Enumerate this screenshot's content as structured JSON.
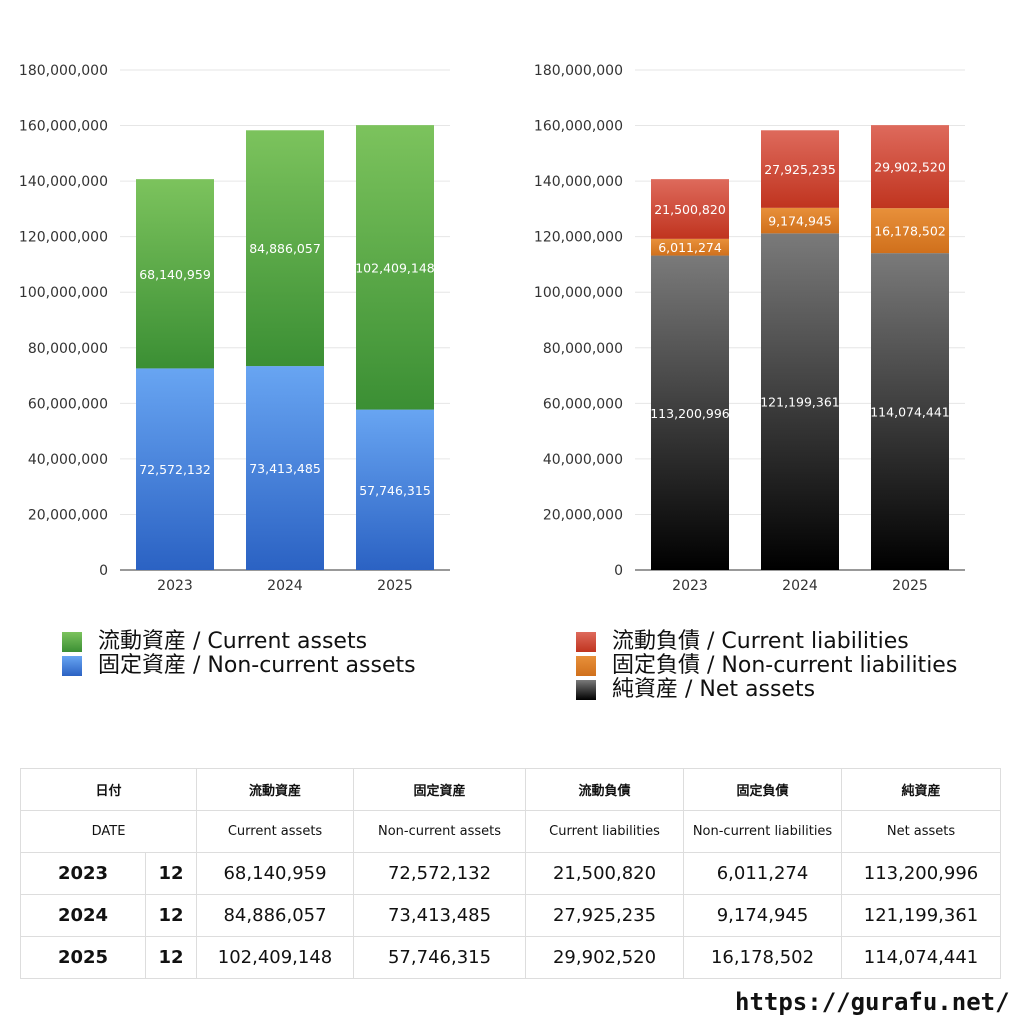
{
  "chart_data": [
    {
      "type": "bar",
      "stacked": true,
      "categories": [
        "2023",
        "2024",
        "2025"
      ],
      "ylim": [
        0,
        180000000
      ],
      "yticks": [
        "0",
        "20,000,000",
        "40,000,000",
        "60,000,000",
        "80,000,000",
        "100,000,000",
        "120,000,000",
        "140,000,000",
        "160,000,000",
        "180,000,000"
      ],
      "grid": true,
      "legend_position": "bottom",
      "series": [
        {
          "name": "固定資産 / Non-current assets",
          "values": [
            72572132,
            73413485,
            57746315
          ],
          "labels": [
            "72,572,132",
            "73,413,485",
            "57,746,315"
          ],
          "color_top": "#68a5f2",
          "color_bottom": "#2b62c3"
        },
        {
          "name": "流動資産 / Current assets",
          "values": [
            68140959,
            84886057,
            102409148
          ],
          "labels": [
            "68,140,959",
            "84,886,057",
            "102,409,148"
          ],
          "color_top": "#7cc35d",
          "color_bottom": "#3b8f34"
        }
      ]
    },
    {
      "type": "bar",
      "stacked": true,
      "categories": [
        "2023",
        "2024",
        "2025"
      ],
      "ylim": [
        0,
        180000000
      ],
      "yticks": [
        "0",
        "20,000,000",
        "40,000,000",
        "60,000,000",
        "80,000,000",
        "100,000,000",
        "120,000,000",
        "140,000,000",
        "160,000,000",
        "180,000,000"
      ],
      "grid": true,
      "legend_position": "bottom",
      "series": [
        {
          "name": "純資産 / Net assets",
          "values": [
            113200996,
            121199361,
            114074441
          ],
          "labels": [
            "113,200,996",
            "121,199,361",
            "114,074,441"
          ],
          "color_top": "#7a7a7a",
          "color_bottom": "#000000"
        },
        {
          "name": "固定負債 / Non-current liabilities",
          "values": [
            6011274,
            9174945,
            16178502
          ],
          "labels": [
            "6,011,274",
            "9,174,945",
            "16,178,502"
          ],
          "color_top": "#e8903a",
          "color_bottom": "#d0701c"
        },
        {
          "name": "流動負債 / Current liabilities",
          "values": [
            21500820,
            27925235,
            29902520
          ],
          "labels": [
            "21,500,820",
            "27,925,235",
            "29,902,520"
          ],
          "color_top": "#de6a5c",
          "color_bottom": "#c0341f"
        }
      ]
    }
  ],
  "legend_assets": [
    {
      "label": "流動資産 / Current assets",
      "color": "#5fae46"
    },
    {
      "label": "固定資産 / Non-current assets",
      "color": "#3c7ee0"
    }
  ],
  "legend_liabilities": [
    {
      "label": "流動負債 / Current liabilities",
      "color": "#d4483a"
    },
    {
      "label": "固定負債 / Non-current liabilities",
      "color": "#e0822c"
    },
    {
      "label": "純資産 / Net assets",
      "color": "#2a2a2a"
    }
  ],
  "table": {
    "header_jp": [
      "日付",
      "流動資産",
      "固定資産",
      "流動負債",
      "固定負債",
      "純資産"
    ],
    "header_en": [
      "DATE",
      "Current assets",
      "Non-current assets",
      "Current liabilities",
      "Non-current liabilities",
      "Net assets"
    ],
    "rows": [
      {
        "year": "2023",
        "month": "12",
        "cells": [
          "68,140,959",
          "72,572,132",
          "21,500,820",
          "6,011,274",
          "113,200,996"
        ]
      },
      {
        "year": "2024",
        "month": "12",
        "cells": [
          "84,886,057",
          "73,413,485",
          "27,925,235",
          "9,174,945",
          "121,199,361"
        ]
      },
      {
        "year": "2025",
        "month": "12",
        "cells": [
          "102,409,148",
          "57,746,315",
          "29,902,520",
          "16,178,502",
          "114,074,441"
        ]
      }
    ]
  },
  "footer": {
    "url": "https://gurafu.net/"
  }
}
